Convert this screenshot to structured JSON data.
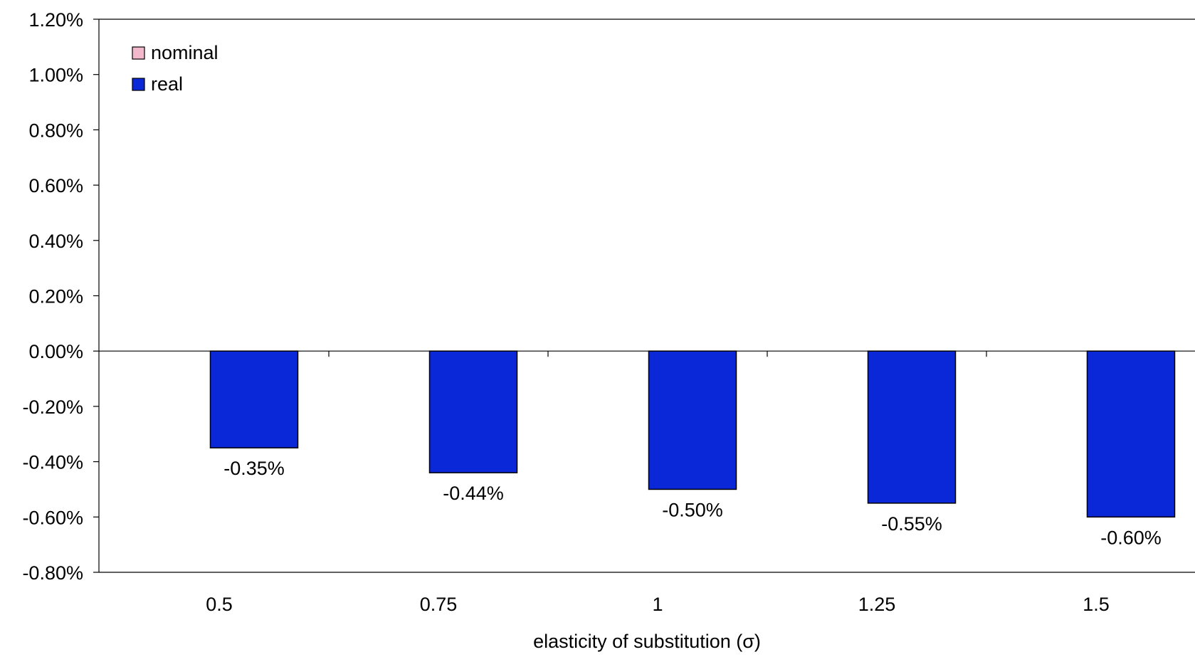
{
  "chart_data": {
    "type": "bar",
    "categories": [
      "0.5",
      "0.75",
      "1",
      "1.25",
      "1.5"
    ],
    "series": [
      {
        "name": "nominal",
        "color": "#f4b8cc",
        "values": [
          0,
          0,
          0,
          0,
          0
        ]
      },
      {
        "name": "real",
        "color": "#0a28d8",
        "values": [
          -0.35,
          -0.44,
          -0.5,
          -0.55,
          -0.6
        ]
      }
    ],
    "data_labels": [
      "-0.35%",
      "-0.44%",
      "-0.50%",
      "-0.55%",
      "-0.60%"
    ],
    "y_ticks": [
      1.2,
      1.0,
      0.8,
      0.6,
      0.4,
      0.2,
      0.0,
      -0.2,
      -0.4,
      -0.6,
      -0.8
    ],
    "y_tick_labels": [
      "1.20%",
      "1.00%",
      "0.80%",
      "0.60%",
      "0.40%",
      "0.20%",
      "0.00%",
      "-0.20%",
      "-0.40%",
      "-0.60%",
      "-0.80%"
    ],
    "ylim": [
      -0.8,
      1.2
    ],
    "xlabel": "elasticity of substitution (σ)",
    "ylabel": "",
    "title": "",
    "grid": false,
    "legend_position": "top-left"
  }
}
